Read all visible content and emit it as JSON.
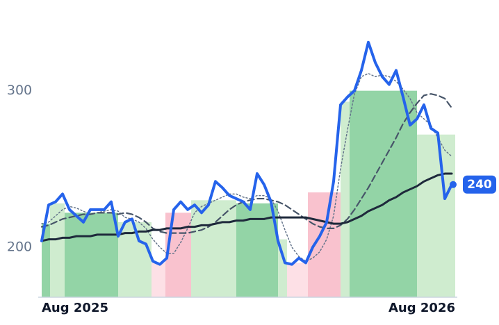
{
  "chart_data": {
    "type": "line",
    "categories": [
      "Aug 2025",
      null,
      null,
      null,
      null,
      null,
      null,
      null,
      null,
      null,
      null,
      null,
      null,
      null,
      null,
      null,
      null,
      null,
      null,
      null,
      null,
      null,
      null,
      null,
      null,
      null,
      null,
      null,
      null,
      null,
      null,
      null,
      null,
      null,
      null,
      null,
      null,
      null,
      null,
      null,
      null,
      null,
      null,
      null,
      null,
      null,
      null,
      null,
      null,
      null,
      null,
      null,
      null,
      null,
      null,
      null,
      null,
      null,
      null,
      "Aug 2026"
    ],
    "regions": [
      {
        "from": 0,
        "to": 1.2,
        "value": 215,
        "color": "#93d4a6"
      },
      {
        "from": 1.2,
        "to": 3.3,
        "value": 228,
        "color": "#cfeccf"
      },
      {
        "from": 3.3,
        "to": 11,
        "value": 222,
        "color": "#93d4a6"
      },
      {
        "from": 11,
        "to": 15.8,
        "value": 216,
        "color": "#cfeccf"
      },
      {
        "from": 15.8,
        "to": 17.8,
        "value": 190,
        "color": "#fde0e6"
      },
      {
        "from": 17.8,
        "to": 21.5,
        "value": 222,
        "color": "#f9c2ce"
      },
      {
        "from": 21.5,
        "to": 28,
        "value": 230,
        "color": "#cfeccf"
      },
      {
        "from": 28,
        "to": 34,
        "value": 228,
        "color": "#93d4a6"
      },
      {
        "from": 34,
        "to": 35.3,
        "value": 205,
        "color": "#cfeccf"
      },
      {
        "from": 35.3,
        "to": 38.3,
        "value": 190,
        "color": "#fde0e6"
      },
      {
        "from": 38.3,
        "to": 43,
        "value": 235,
        "color": "#f9c2ce"
      },
      {
        "from": 43,
        "to": 44.3,
        "value": 293,
        "color": "#cfeccf"
      },
      {
        "from": 44.3,
        "to": 54,
        "value": 300,
        "color": "#93d4a6"
      },
      {
        "from": 54,
        "to": 59.5,
        "value": 272,
        "color": "#cfeccf"
      }
    ],
    "series": [
      {
        "color": "#2563eb",
        "style": "solid",
        "width": 4,
        "values": [
          204,
          227,
          229,
          234,
          224,
          220,
          216,
          224,
          224,
          224,
          229,
          207,
          216,
          218,
          204,
          202,
          191,
          189,
          193,
          224,
          229,
          224,
          227,
          222,
          227,
          242,
          238,
          233,
          231,
          229,
          224,
          247,
          240,
          229,
          204,
          190,
          189,
          193,
          190,
          200,
          207,
          216,
          242,
          291,
          296,
          300,
          313,
          331,
          318,
          309,
          304,
          313,
          296,
          278,
          282,
          291,
          276,
          273,
          231,
          240
        ]
      },
      {
        "color": "#1e293b",
        "style": "solid",
        "width": 3,
        "values": [
          204,
          205,
          205,
          206,
          206,
          207,
          207,
          207,
          208,
          208,
          208,
          208,
          209,
          209,
          210,
          210,
          211,
          211,
          212,
          212,
          212,
          213,
          213,
          214,
          214,
          215,
          216,
          216,
          217,
          217,
          218,
          218,
          218,
          219,
          219,
          219,
          219,
          219,
          219,
          218,
          217,
          216,
          215,
          215,
          216,
          218,
          220,
          223,
          225,
          227,
          230,
          232,
          235,
          237,
          239,
          242,
          244,
          246,
          247,
          247
        ]
      },
      {
        "color": "#475569",
        "style": "dashed",
        "width": 2.2,
        "values": [
          213,
          214,
          216,
          218,
          219,
          220,
          221,
          221,
          222,
          222,
          222,
          221,
          222,
          221,
          219,
          216,
          212,
          210,
          209,
          209,
          209,
          209,
          210,
          211,
          213,
          216,
          220,
          224,
          227,
          229,
          230,
          231,
          231,
          230,
          229,
          227,
          224,
          221,
          218,
          215,
          213,
          212,
          212,
          214,
          218,
          224,
          231,
          238,
          246,
          254,
          262,
          270,
          279,
          286,
          292,
          297,
          298,
          297,
          295,
          289
        ]
      },
      {
        "color": "#64748b",
        "style": "dotted",
        "width": 1.5,
        "values": [
          215,
          216,
          220,
          224,
          226,
          225,
          223,
          221,
          222,
          223,
          224,
          223,
          219,
          218,
          216,
          212,
          205,
          200,
          196,
          196,
          203,
          212,
          222,
          226,
          228,
          230,
          232,
          234,
          234,
          232,
          231,
          233,
          233,
          231,
          223,
          211,
          200,
          194,
          191,
          193,
          197,
          205,
          220,
          250,
          275,
          298,
          309,
          311,
          309,
          310,
          309,
          306,
          301,
          295,
          286,
          282,
          278,
          270,
          262,
          258
        ]
      }
    ],
    "ylim": [
      168,
      358
    ],
    "yticks": [
      200,
      300
    ],
    "grid": false
  }
}
